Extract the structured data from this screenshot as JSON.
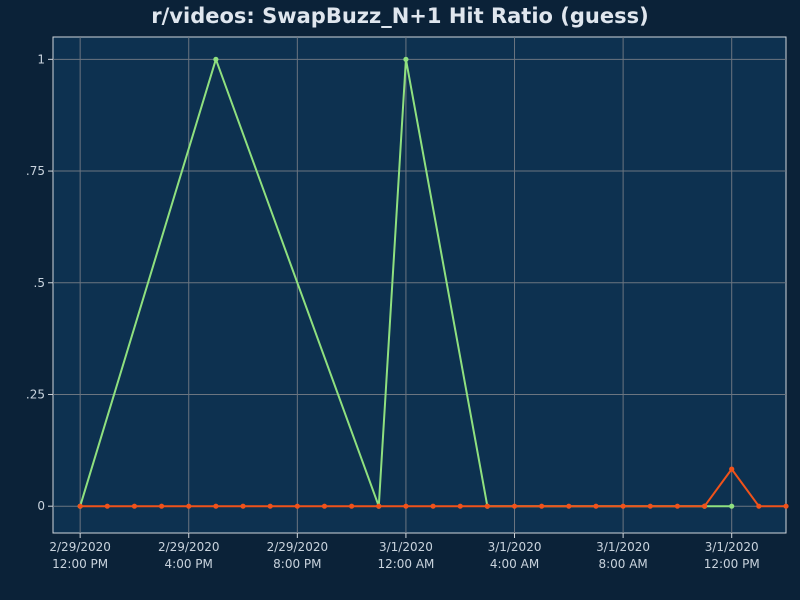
{
  "chart_data": {
    "type": "line",
    "title": "r/videos: SwapBuzz_N+1 Hit Ratio (guess)",
    "xlabel": "",
    "ylabel": "",
    "x_unit": "datetime",
    "xlim": [
      "2020-02-29 11:00",
      "2020-03-01 14:00"
    ],
    "ylim": [
      -0.06,
      1.05
    ],
    "y_ticks": [
      0,
      0.25,
      0.5,
      0.75,
      1
    ],
    "y_tick_labels": [
      "0",
      ".25",
      ".5",
      ".75",
      "1"
    ],
    "x_ticks": [
      {
        "x": "2020-02-29 12:00",
        "date": "2/29/2020",
        "time": "12:00 PM"
      },
      {
        "x": "2020-02-29 16:00",
        "date": "2/29/2020",
        "time": "4:00 PM"
      },
      {
        "x": "2020-02-29 20:00",
        "date": "2/29/2020",
        "time": "8:00 PM"
      },
      {
        "x": "2020-03-01 00:00",
        "date": "3/1/2020",
        "time": "12:00 AM"
      },
      {
        "x": "2020-03-01 04:00",
        "date": "3/1/2020",
        "time": "4:00 AM"
      },
      {
        "x": "2020-03-01 08:00",
        "date": "3/1/2020",
        "time": "8:00 AM"
      },
      {
        "x": "2020-03-01 12:00",
        "date": "3/1/2020",
        "time": "12:00 PM"
      }
    ],
    "grid": true,
    "legend": "none",
    "series": [
      {
        "color": "#8fe07f",
        "points": [
          [
            "2020-02-29 12:00",
            0
          ],
          [
            "2020-02-29 17:00",
            1
          ],
          [
            "2020-02-29 23:00",
            0
          ],
          [
            "2020-03-01 00:00",
            1
          ],
          [
            "2020-03-01 03:00",
            0
          ],
          [
            "2020-03-01 11:00",
            0
          ],
          [
            "2020-03-01 12:00",
            0
          ]
        ]
      },
      {
        "color": "#f0521a",
        "points": [
          [
            "2020-02-29 12:00",
            0
          ],
          [
            "2020-02-29 13:00",
            0
          ],
          [
            "2020-02-29 14:00",
            0
          ],
          [
            "2020-02-29 15:00",
            0
          ],
          [
            "2020-02-29 16:00",
            0
          ],
          [
            "2020-02-29 17:00",
            0
          ],
          [
            "2020-02-29 18:00",
            0
          ],
          [
            "2020-02-29 19:00",
            0
          ],
          [
            "2020-02-29 20:00",
            0
          ],
          [
            "2020-02-29 21:00",
            0
          ],
          [
            "2020-02-29 22:00",
            0
          ],
          [
            "2020-02-29 23:00",
            0
          ],
          [
            "2020-03-01 00:00",
            0
          ],
          [
            "2020-03-01 01:00",
            0
          ],
          [
            "2020-03-01 02:00",
            0
          ],
          [
            "2020-03-01 03:00",
            0
          ],
          [
            "2020-03-01 04:00",
            0
          ],
          [
            "2020-03-01 05:00",
            0
          ],
          [
            "2020-03-01 06:00",
            0
          ],
          [
            "2020-03-01 07:00",
            0
          ],
          [
            "2020-03-01 08:00",
            0
          ],
          [
            "2020-03-01 09:00",
            0
          ],
          [
            "2020-03-01 10:00",
            0
          ],
          [
            "2020-03-01 11:00",
            0
          ],
          [
            "2020-03-01 12:00",
            0.083
          ],
          [
            "2020-03-01 13:00",
            0
          ],
          [
            "2020-03-01 14:00",
            0
          ]
        ]
      }
    ]
  },
  "colors": {
    "background": "#0b2238",
    "plot_background": "#0d3150",
    "grid": "#6b7580",
    "axis": "#d0d6dc"
  }
}
